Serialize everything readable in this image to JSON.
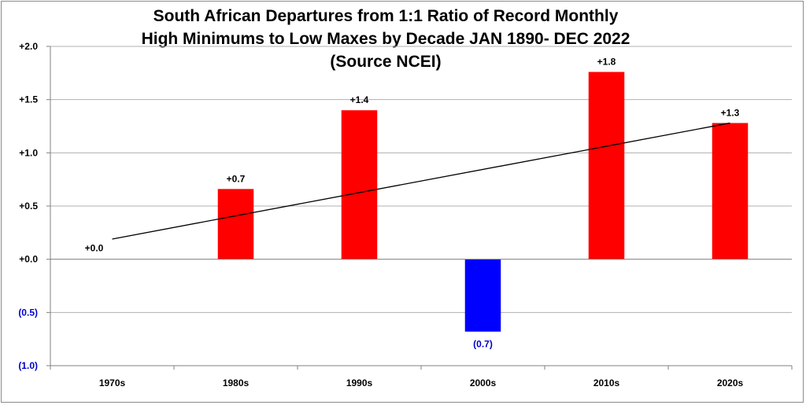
{
  "chart_data": {
    "type": "bar",
    "title_lines": [
      "South African Departures from 1:1 Ratio of Record Monthly",
      "High Minimums to Low Maxes by Decade JAN 1890- DEC 2022",
      "(Source NCEI)"
    ],
    "categories": [
      "1970s",
      "1980s",
      "1990s",
      "2000s",
      "2010s",
      "2020s"
    ],
    "values": [
      0.0,
      0.66,
      1.4,
      -0.68,
      1.76,
      1.28
    ],
    "data_labels": [
      "+0.0",
      "+0.7",
      "+1.4",
      "(0.7)",
      "+1.8",
      "+1.3"
    ],
    "y_ticks": [
      2.0,
      1.5,
      1.0,
      0.5,
      0.0,
      -0.5,
      -1.0
    ],
    "y_tick_labels": [
      "+2.0",
      "+1.5",
      "+1.0",
      "+0.5",
      "+0.0",
      "(0.5)",
      "(1.0)"
    ],
    "ylim": [
      -1.0,
      2.0
    ],
    "trendline": {
      "start": 0.19,
      "end": 1.28
    },
    "grid": true,
    "colors": {
      "positive": "#ff0000",
      "negative": "#0000ff",
      "positive_label": "#000000",
      "negative_label": "#0000cc",
      "trend": "#000000",
      "grid": "#b0b0b0"
    }
  }
}
